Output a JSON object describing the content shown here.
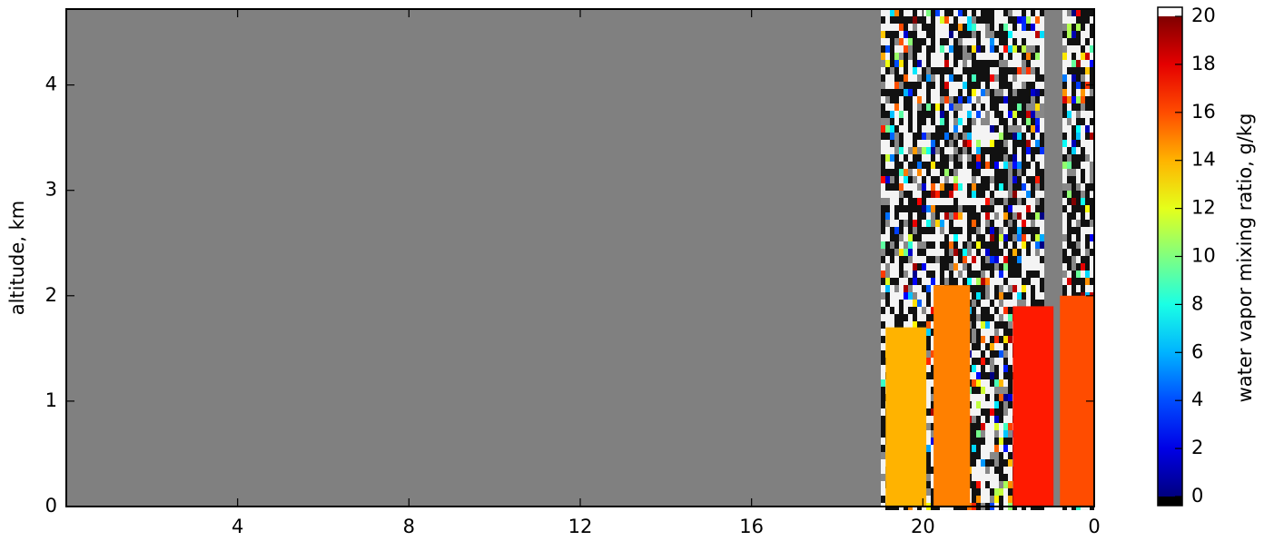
{
  "chart_data": {
    "type": "heatmap",
    "ylabel": "altitude, km",
    "xlim": [
      0,
      24
    ],
    "xticks": [
      4,
      8,
      12,
      16,
      20,
      {
        "value": 24,
        "label": "0"
      }
    ],
    "ylim": [
      0,
      4.72
    ],
    "yticks": [
      0,
      1,
      2,
      3,
      4
    ],
    "missing_color": "#808080",
    "columns": [
      {
        "x": [
          19.13,
          20.08
        ],
        "top": 1.7,
        "value": 14
      },
      {
        "x": [
          20.25,
          21.1
        ],
        "top": 2.1,
        "value": 15
      },
      {
        "x": [
          22.1,
          23.05
        ],
        "top": 1.9,
        "value": 17
      },
      {
        "x": [
          23.2,
          24
        ],
        "top": 2.0,
        "value": 16
      }
    ],
    "colorbar": {
      "label": "water vapor mixing ratio, g/kg",
      "lim": [
        0,
        20
      ],
      "ticks": [
        0,
        2,
        4,
        6,
        8,
        10,
        12,
        14,
        16,
        18,
        20
      ],
      "colormap": "jet"
    }
  }
}
